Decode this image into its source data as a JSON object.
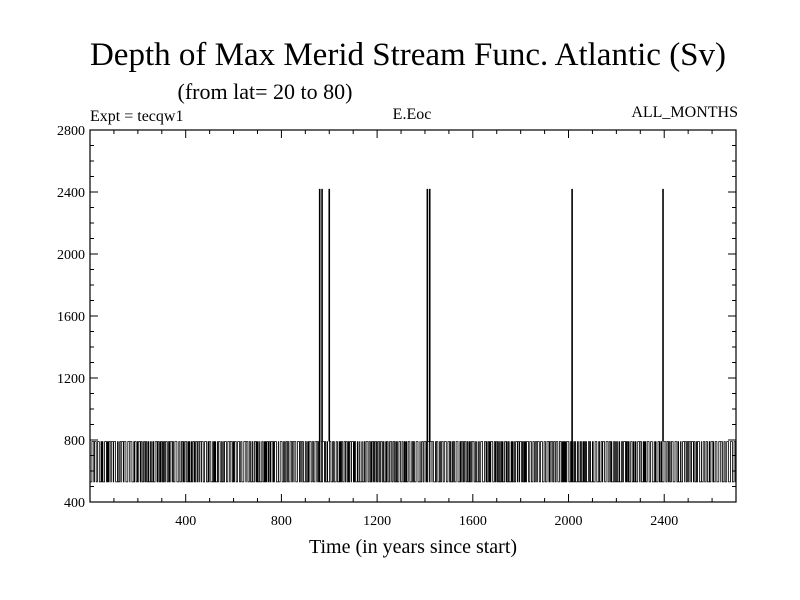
{
  "chart_data": {
    "type": "line",
    "title": "Depth of Max Merid Stream Func. Atlantic (Sv)",
    "subtitle": "(from lat= 20 to 80)",
    "annotations": {
      "experiment": "Expt = tecqw1",
      "variable": "E.Eoc",
      "period": "ALL_MONTHS"
    },
    "xlabel": "Time (in years since start)",
    "ylabel": "",
    "xlim": [
      0,
      2700
    ],
    "ylim": [
      400,
      2800
    ],
    "xticks": [
      400,
      800,
      1200,
      1600,
      2000,
      2400
    ],
    "xtick_labels": [
      "400",
      "800",
      "1200",
      "1600",
      "2000",
      "2400"
    ],
    "yticks": [
      400,
      800,
      1200,
      1600,
      2000,
      2400,
      2800
    ],
    "ytick_labels": [
      "400",
      "800",
      "1200",
      "1600",
      "2000",
      "2400",
      "2800"
    ],
    "grid": false,
    "series": [
      {
        "low_value": 530,
        "high_value": 790,
        "x_start": 0,
        "x_end": 2700,
        "spikes": [
          {
            "x": 960,
            "value": 2420
          },
          {
            "x": 970,
            "value": 2420
          },
          {
            "x": 1000,
            "value": 2420
          },
          {
            "x": 1410,
            "value": 2420
          },
          {
            "x": 1420,
            "value": 2420
          },
          {
            "x": 2015,
            "value": 2420
          },
          {
            "x": 2395,
            "value": 2420
          }
        ]
      }
    ],
    "line_color": "#000000"
  }
}
